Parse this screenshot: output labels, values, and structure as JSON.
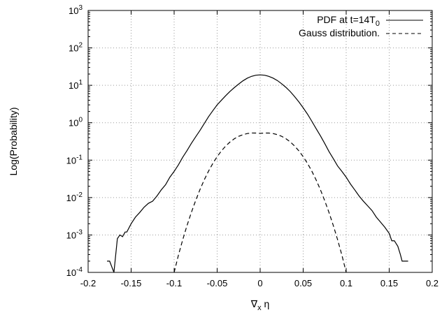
{
  "chart_data": {
    "type": "line",
    "title": "",
    "xlabel": {
      "main": "∇",
      "sub": "x",
      "tail": " η"
    },
    "ylabel": "Log(Probability)",
    "xlim": [
      -0.2,
      0.2
    ],
    "ylim": [
      0.0001,
      1000
    ],
    "yscale": "log",
    "grid": true,
    "legend_position": "top-right",
    "xticks": [
      "-0.2",
      "-0.15",
      "-0.1",
      "-0.05",
      "0",
      "0.05",
      "0.1",
      "0.15",
      "0.2"
    ],
    "yticks": [
      {
        "base": "10",
        "exp": "-4"
      },
      {
        "base": "10",
        "exp": "-3"
      },
      {
        "base": "10",
        "exp": "-2"
      },
      {
        "base": "10",
        "exp": "-1"
      },
      {
        "base": "10",
        "exp": "0"
      },
      {
        "base": "10",
        "exp": "1"
      },
      {
        "base": "10",
        "exp": "2"
      },
      {
        "base": "10",
        "exp": "3"
      }
    ],
    "series": [
      {
        "name": {
          "main": "PDF at t=14T",
          "sub": "0"
        },
        "style": "solid",
        "color": "#000000",
        "x": [
          -0.178,
          -0.175,
          -0.17,
          -0.166,
          -0.163,
          -0.16,
          -0.157,
          -0.155,
          -0.15,
          -0.145,
          -0.14,
          -0.135,
          -0.13,
          -0.125,
          -0.12,
          -0.115,
          -0.11,
          -0.105,
          -0.1,
          -0.095,
          -0.09,
          -0.085,
          -0.08,
          -0.075,
          -0.07,
          -0.065,
          -0.06,
          -0.055,
          -0.05,
          -0.045,
          -0.04,
          -0.035,
          -0.03,
          -0.025,
          -0.02,
          -0.015,
          -0.01,
          -0.005,
          0.0,
          0.005,
          0.01,
          0.015,
          0.02,
          0.025,
          0.03,
          0.035,
          0.04,
          0.045,
          0.05,
          0.055,
          0.06,
          0.065,
          0.07,
          0.075,
          0.08,
          0.085,
          0.09,
          0.095,
          0.1,
          0.105,
          0.11,
          0.115,
          0.12,
          0.125,
          0.13,
          0.135,
          0.14,
          0.145,
          0.15,
          0.153,
          0.156,
          0.16,
          0.163,
          0.165,
          0.168,
          0.172
        ],
        "y": [
          0.0002,
          0.0002,
          0.0001,
          0.0008,
          0.001,
          0.0009,
          0.0012,
          0.0012,
          0.002,
          0.003,
          0.004,
          0.0055,
          0.007,
          0.008,
          0.011,
          0.016,
          0.022,
          0.035,
          0.05,
          0.075,
          0.12,
          0.18,
          0.28,
          0.42,
          0.62,
          0.95,
          1.45,
          2.1,
          3.0,
          4.0,
          5.3,
          6.9,
          8.7,
          10.8,
          13.2,
          15.5,
          17.4,
          18.6,
          19.0,
          18.6,
          17.4,
          15.6,
          13.4,
          11.0,
          8.8,
          6.8,
          5.0,
          3.6,
          2.5,
          1.7,
          1.1,
          0.7,
          0.45,
          0.28,
          0.17,
          0.11,
          0.07,
          0.05,
          0.035,
          0.023,
          0.016,
          0.011,
          0.008,
          0.006,
          0.0045,
          0.003,
          0.0022,
          0.0016,
          0.0011,
          0.0007,
          0.0007,
          0.0005,
          0.0003,
          0.0002,
          0.0002,
          0.0002
        ]
      },
      {
        "name": {
          "main": "Gauss distribution.",
          "sub": ""
        },
        "style": "dashed",
        "color": "#000000",
        "x": [
          -0.1,
          -0.095,
          -0.09,
          -0.085,
          -0.08,
          -0.075,
          -0.07,
          -0.065,
          -0.06,
          -0.055,
          -0.05,
          -0.045,
          -0.04,
          -0.035,
          -0.03,
          -0.025,
          -0.02,
          -0.015,
          -0.01,
          -0.005,
          0,
          0.005,
          0.01,
          0.015,
          0.02,
          0.025,
          0.03,
          0.035,
          0.04,
          0.045,
          0.05,
          0.055,
          0.06,
          0.065,
          0.07,
          0.075,
          0.08,
          0.085,
          0.09,
          0.095,
          0.1
        ],
        "y": [
          0.0001,
          0.00029,
          0.00075,
          0.0018,
          0.004,
          0.0083,
          0.0163,
          0.0298,
          0.051,
          0.082,
          0.124,
          0.177,
          0.239,
          0.306,
          0.373,
          0.434,
          0.48,
          0.514,
          0.531,
          0.53,
          0.52,
          0.53,
          0.531,
          0.514,
          0.48,
          0.434,
          0.373,
          0.306,
          0.239,
          0.177,
          0.124,
          0.082,
          0.051,
          0.0298,
          0.0163,
          0.0083,
          0.004,
          0.0018,
          0.00075,
          0.00029,
          0.0001
        ]
      }
    ]
  }
}
